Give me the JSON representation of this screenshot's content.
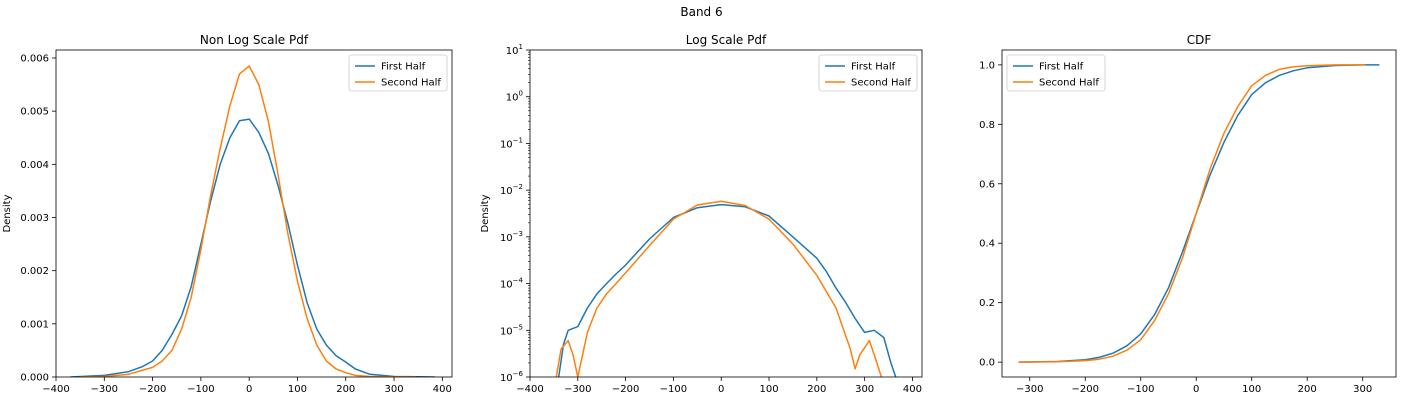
{
  "figure": {
    "title": "Band 6"
  },
  "chart_data": [
    {
      "type": "line",
      "title": "Non Log Scale Pdf",
      "xlabel": "",
      "ylabel": "Density",
      "xlim": [
        -400,
        420
      ],
      "ylim": [
        0,
        0.00615
      ],
      "yscale": "linear",
      "xticks": [
        -400,
        -300,
        -200,
        -100,
        0,
        100,
        200,
        300,
        400
      ],
      "xtick_labels": [
        "−400",
        "−300",
        "−200",
        "−100",
        "0",
        "100",
        "200",
        "300",
        "400"
      ],
      "yticks": [
        0,
        0.001,
        0.002,
        0.003,
        0.004,
        0.005,
        0.006
      ],
      "ytick_labels": [
        "0.000",
        "0.001",
        "0.002",
        "0.003",
        "0.004",
        "0.005",
        "0.006"
      ],
      "legend": {
        "loc": "upper right",
        "entries": [
          "First Half",
          "Second Half"
        ]
      },
      "series": [
        {
          "name": "First Half",
          "color": "#1f77b4",
          "x": [
            -370,
            -300,
            -250,
            -220,
            -200,
            -180,
            -160,
            -140,
            -120,
            -100,
            -80,
            -60,
            -40,
            -20,
            0,
            20,
            40,
            60,
            80,
            100,
            120,
            140,
            160,
            180,
            200,
            220,
            250,
            300,
            350,
            385
          ],
          "y": [
            0.0,
            3e-05,
            0.0001,
            0.0002,
            0.0003,
            0.0005,
            0.0008,
            0.00115,
            0.0017,
            0.0025,
            0.0033,
            0.004,
            0.0045,
            0.00482,
            0.00485,
            0.0046,
            0.0042,
            0.0036,
            0.0029,
            0.0021,
            0.0014,
            0.0009,
            0.0006,
            0.0004,
            0.00028,
            0.00015,
            5e-05,
            1e-05,
            3e-06,
            0.0
          ]
        },
        {
          "name": "Second Half",
          "color": "#ff7f0e",
          "x": [
            -350,
            -300,
            -250,
            -200,
            -180,
            -160,
            -140,
            -120,
            -100,
            -80,
            -60,
            -40,
            -20,
            0,
            20,
            40,
            60,
            80,
            100,
            120,
            140,
            160,
            180,
            200,
            220,
            250,
            300,
            345
          ],
          "y": [
            0.0,
            1e-05,
            5e-05,
            0.00018,
            0.0003,
            0.0005,
            0.0009,
            0.0015,
            0.0024,
            0.0034,
            0.0043,
            0.0051,
            0.0057,
            0.00585,
            0.0055,
            0.0048,
            0.0038,
            0.0027,
            0.0018,
            0.0011,
            0.0006,
            0.0003,
            0.00015,
            8e-05,
            3e-05,
            1e-05,
            2e-06,
            0.0
          ]
        }
      ]
    },
    {
      "type": "line",
      "title": "Log Scale Pdf",
      "xlabel": "",
      "ylabel": "Density",
      "xlim": [
        -400,
        420
      ],
      "ylim": [
        1e-06,
        10
      ],
      "yscale": "log",
      "xticks": [
        -400,
        -300,
        -200,
        -100,
        0,
        100,
        200,
        300,
        400
      ],
      "xtick_labels": [
        "−400",
        "−300",
        "−200",
        "−100",
        "0",
        "100",
        "200",
        "300",
        "400"
      ],
      "yticks": [
        1e-06,
        1e-05,
        0.0001,
        0.001,
        0.01,
        0.1,
        1,
        10
      ],
      "ytick_labels": [
        {
          "base": "10",
          "exp": "−6"
        },
        {
          "base": "10",
          "exp": "−5"
        },
        {
          "base": "10",
          "exp": "−4"
        },
        {
          "base": "10",
          "exp": "−3"
        },
        {
          "base": "10",
          "exp": "−2"
        },
        {
          "base": "10",
          "exp": "−1"
        },
        {
          "base": "10",
          "exp": "0"
        },
        {
          "base": "10",
          "exp": "1"
        }
      ],
      "legend": {
        "loc": "upper right",
        "entries": [
          "First Half",
          "Second Half"
        ]
      },
      "series": [
        {
          "name": "First Half",
          "color": "#1f77b4",
          "x": [
            -340,
            -330,
            -320,
            -300,
            -280,
            -260,
            -240,
            -220,
            -200,
            -150,
            -100,
            -50,
            0,
            50,
            100,
            150,
            200,
            220,
            240,
            260,
            280,
            300,
            320,
            340,
            355,
            365
          ],
          "y": [
            1e-06,
            5e-06,
            1e-05,
            1.2e-05,
            3e-05,
            6e-05,
            0.0001,
            0.00016,
            0.00025,
            0.0009,
            0.0026,
            0.0042,
            0.0049,
            0.0044,
            0.0028,
            0.001,
            0.00035,
            0.00018,
            8e-05,
            4e-05,
            1.8e-05,
            9e-06,
            1e-05,
            7e-06,
            2e-06,
            1e-06
          ]
        },
        {
          "name": "Second Half",
          "color": "#ff7f0e",
          "x": [
            -345,
            -335,
            -320,
            -310,
            -300,
            -290,
            -280,
            -260,
            -240,
            -220,
            -200,
            -150,
            -100,
            -50,
            0,
            50,
            100,
            150,
            200,
            240,
            270,
            280,
            290,
            310,
            320,
            335
          ],
          "y": [
            1e-06,
            4e-06,
            6e-06,
            3e-06,
            1e-06,
            3e-06,
            9e-06,
            3e-05,
            6e-05,
            0.0001,
            0.00017,
            0.00065,
            0.0024,
            0.0048,
            0.0058,
            0.0047,
            0.0024,
            0.0007,
            0.00015,
            3e-05,
            4e-06,
            1.5e-06,
            3e-06,
            6e-06,
            3e-06,
            1e-06
          ]
        }
      ]
    },
    {
      "type": "line",
      "title": "CDF",
      "xlabel": "",
      "ylabel": "",
      "xlim": [
        -350,
        360
      ],
      "ylim": [
        -0.05,
        1.05
      ],
      "yscale": "linear",
      "xticks": [
        -300,
        -200,
        -100,
        0,
        100,
        200,
        300
      ],
      "xtick_labels": [
        "−300",
        "−200",
        "−100",
        "0",
        "100",
        "200",
        "300"
      ],
      "yticks": [
        0,
        0.2,
        0.4,
        0.6,
        0.8,
        1.0
      ],
      "ytick_labels": [
        "0.0",
        "0.2",
        "0.4",
        "0.6",
        "0.8",
        "1.0"
      ],
      "legend": {
        "loc": "upper left",
        "entries": [
          "First Half",
          "Second Half"
        ]
      },
      "series": [
        {
          "name": "First Half",
          "color": "#1f77b4",
          "x": [
            -320,
            -250,
            -200,
            -175,
            -150,
            -125,
            -100,
            -75,
            -50,
            -25,
            0,
            25,
            50,
            75,
            100,
            125,
            150,
            175,
            200,
            250,
            300,
            330
          ],
          "y": [
            0.0,
            0.002,
            0.008,
            0.016,
            0.03,
            0.055,
            0.095,
            0.16,
            0.25,
            0.37,
            0.5,
            0.63,
            0.74,
            0.83,
            0.9,
            0.94,
            0.965,
            0.98,
            0.99,
            0.998,
            1.0,
            1.0
          ]
        },
        {
          "name": "Second Half",
          "color": "#ff7f0e",
          "x": [
            -320,
            -250,
            -200,
            -175,
            -150,
            -125,
            -100,
            -75,
            -50,
            -25,
            0,
            25,
            50,
            75,
            100,
            125,
            150,
            175,
            200,
            250,
            305
          ],
          "y": [
            0.0,
            0.001,
            0.005,
            0.01,
            0.02,
            0.04,
            0.075,
            0.14,
            0.23,
            0.35,
            0.5,
            0.65,
            0.77,
            0.86,
            0.93,
            0.965,
            0.985,
            0.993,
            0.997,
            1.0,
            1.0
          ]
        }
      ]
    }
  ]
}
